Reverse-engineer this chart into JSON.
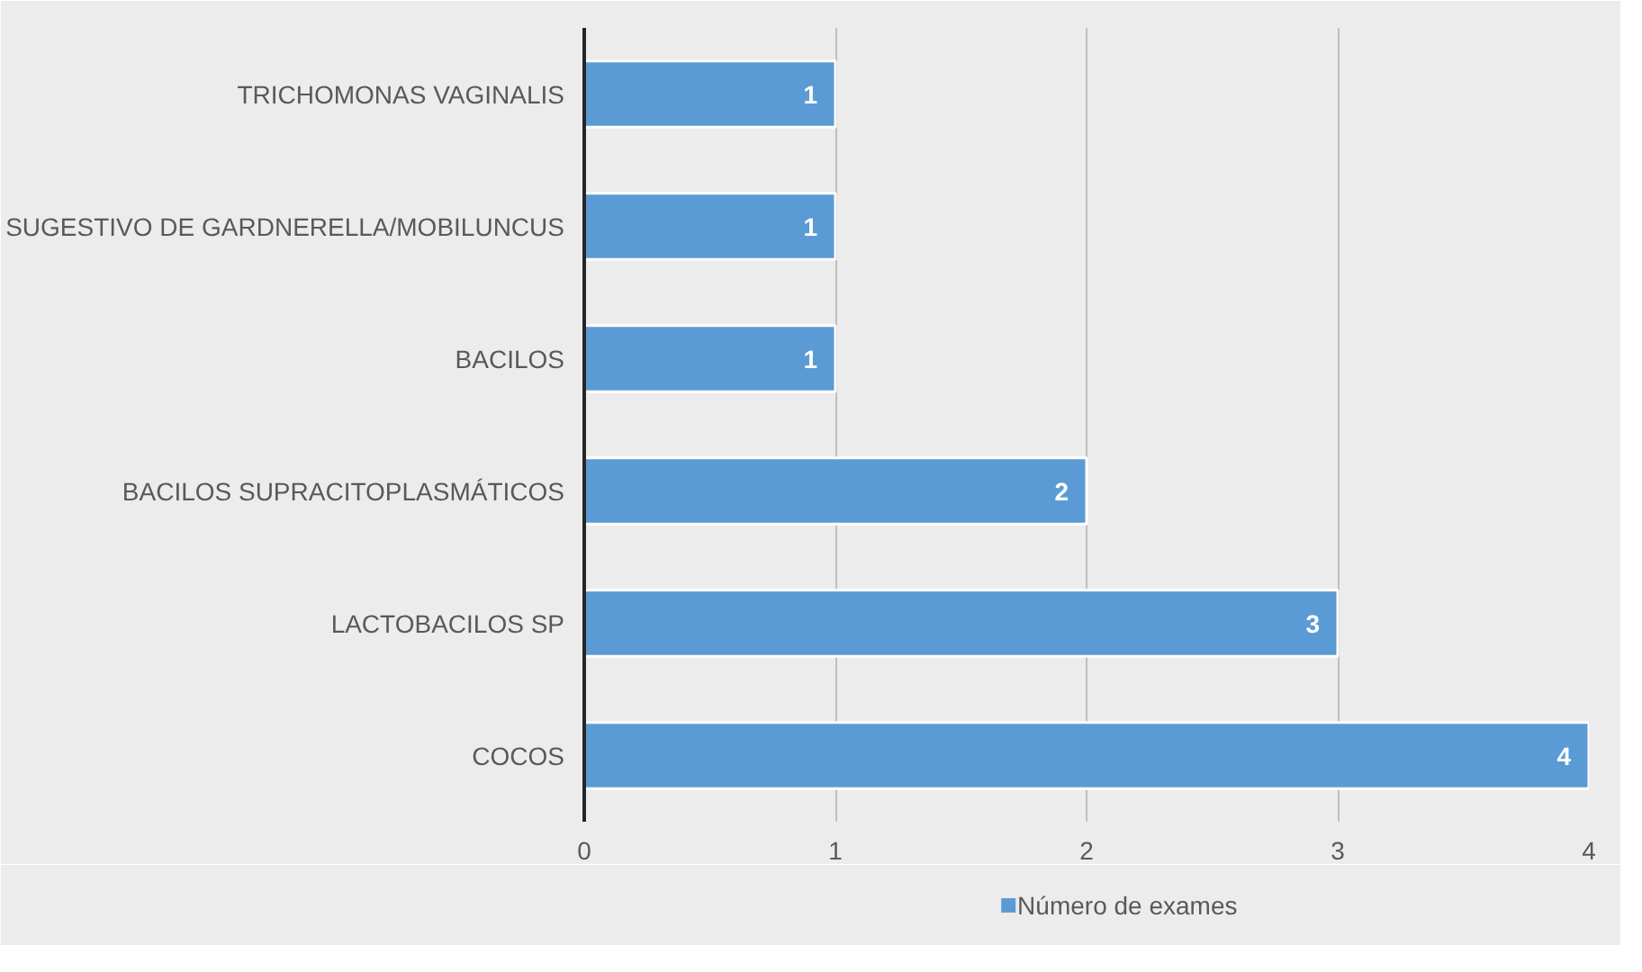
{
  "chart_data": {
    "type": "bar",
    "orientation": "horizontal",
    "categories": [
      "TRICHOMONAS VAGINALIS",
      "SUGESTIVO DE GARDNERELLA/MOBILUNCUS",
      "BACILOS",
      "BACILOS SUPRACITOPLASMÁTICOS",
      "LACTOBACILOS SP",
      "COCOS"
    ],
    "series": [
      {
        "name": "Número de exames",
        "color": "#5b9bd5",
        "values": [
          1,
          1,
          1,
          2,
          3,
          4
        ]
      }
    ],
    "xlim": [
      0,
      4
    ],
    "xticks": [
      0,
      1,
      2,
      3,
      4
    ],
    "grid": "x",
    "legend": "bottom",
    "data_labels": true
  }
}
